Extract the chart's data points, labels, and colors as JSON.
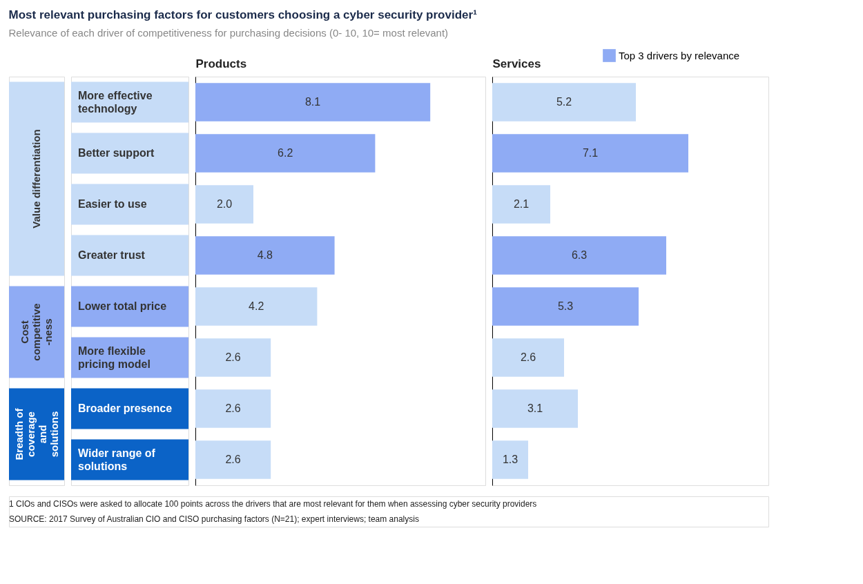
{
  "chart_data": [
    {
      "type": "bar",
      "orientation": "horizontal",
      "title": "Most relevant purchasing factors for customers choosing a cyber security provider¹",
      "subtitle": "Relevance of each driver of competitiveness for purchasing decisions (0- 10, 10= most relevant)",
      "xlabel": "Products",
      "categories": [
        "More effective technology",
        "Better support",
        "Easier to use",
        "Greater trust",
        "Lower total price",
        "More flexible pricing model",
        "Broader presence",
        "Wider range of solutions"
      ],
      "series": [
        {
          "color": "#8fabf4",
          "values": [
            8.1,
            6.2,
            null,
            4.8,
            null,
            null,
            null,
            null
          ],
          "value_labels": [
            "8.1",
            "6.2",
            null,
            "4.8",
            null,
            null,
            null,
            null
          ]
        },
        {
          "color": "#c6dcf7",
          "values": [
            null,
            null,
            2.0,
            null,
            4.2,
            2.6,
            2.6,
            2.6
          ],
          "value_labels": [
            null,
            null,
            "2.0",
            null,
            "4.2",
            "2.6",
            "2.6",
            "2.6"
          ]
        }
      ],
      "xlim": [
        0,
        10
      ],
      "tick_labels": "y",
      "annotations": [
        "Value differentiation",
        "Cost competitive -ness",
        "Breadth of coverage and solutions",
        "1 CIOs and CISOs were asked to allocate 100 points across the drivers that are most relevant for them when assessing cyber security providers",
        "SOURCE: 2017 Survey of Australian CIO and CISO purchasing factors (N=21); expert interviews; team analysis"
      ]
    },
    {
      "type": "bar",
      "orientation": "horizontal",
      "xlabel": "Services",
      "categories": [
        "More effective technology",
        "Better support",
        "Easier to use",
        "Greater trust",
        "Lower total price",
        "More flexible pricing model",
        "Broader presence",
        "Wider range of solutions"
      ],
      "series": [
        {
          "name": "Top 3 drivers by relevance",
          "color": "#8fabf4",
          "values": [
            null,
            7.1,
            null,
            6.3,
            5.3,
            null,
            null,
            null
          ],
          "value_labels": [
            null,
            "7.1",
            null,
            "6.3",
            "5.3",
            null,
            null,
            null
          ]
        },
        {
          "color": "#c6dcf7",
          "values": [
            5.2,
            null,
            2.1,
            null,
            null,
            2.6,
            3.1,
            1.3
          ],
          "value_labels": [
            "5.2",
            null,
            "2.1",
            null,
            null,
            "2.6",
            "3.1",
            "1.3"
          ]
        }
      ],
      "xlim": [
        0,
        10
      ],
      "tick_labels": false,
      "legend": "top right"
    }
  ]
}
